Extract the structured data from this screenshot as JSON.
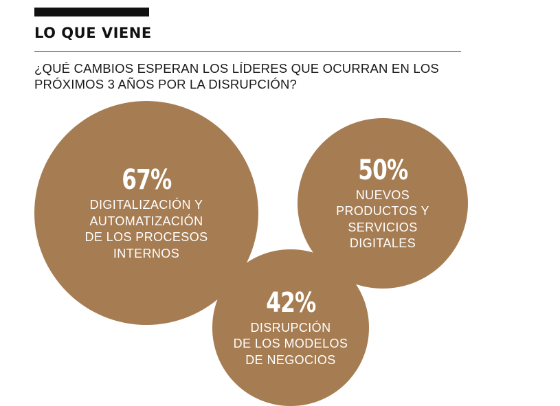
{
  "header": {
    "title": "LO QUE VIENE",
    "question": "¿QUÉ CAMBIOS ESPERAN LOS LÍDERES QUE OCURRAN EN LOS PRÓXIMOS 3 AÑOS POR LA DISRUPCIÓN?"
  },
  "colors": {
    "bubble": "#a67c52",
    "text_on_bubble": "#ffffff",
    "accent_bar": "#111111"
  },
  "chart_data": {
    "type": "bubble",
    "title": "",
    "units": "%",
    "items": [
      {
        "value_label": "67%",
        "value": 67,
        "label": "DIGITALIZACIÓN Y\nAUTOMATIZACIÓN\nDE LOS PROCESOS\nINTERNOS"
      },
      {
        "value_label": "50%",
        "value": 50,
        "label": "NUEVOS\nPRODUCTOS Y\nSERVICIOS\nDIGITALES"
      },
      {
        "value_label": "42%",
        "value": 42,
        "label": "DISRUPCIÓN\nDE LOS MODELOS\nDE NEGOCIOS"
      }
    ]
  }
}
